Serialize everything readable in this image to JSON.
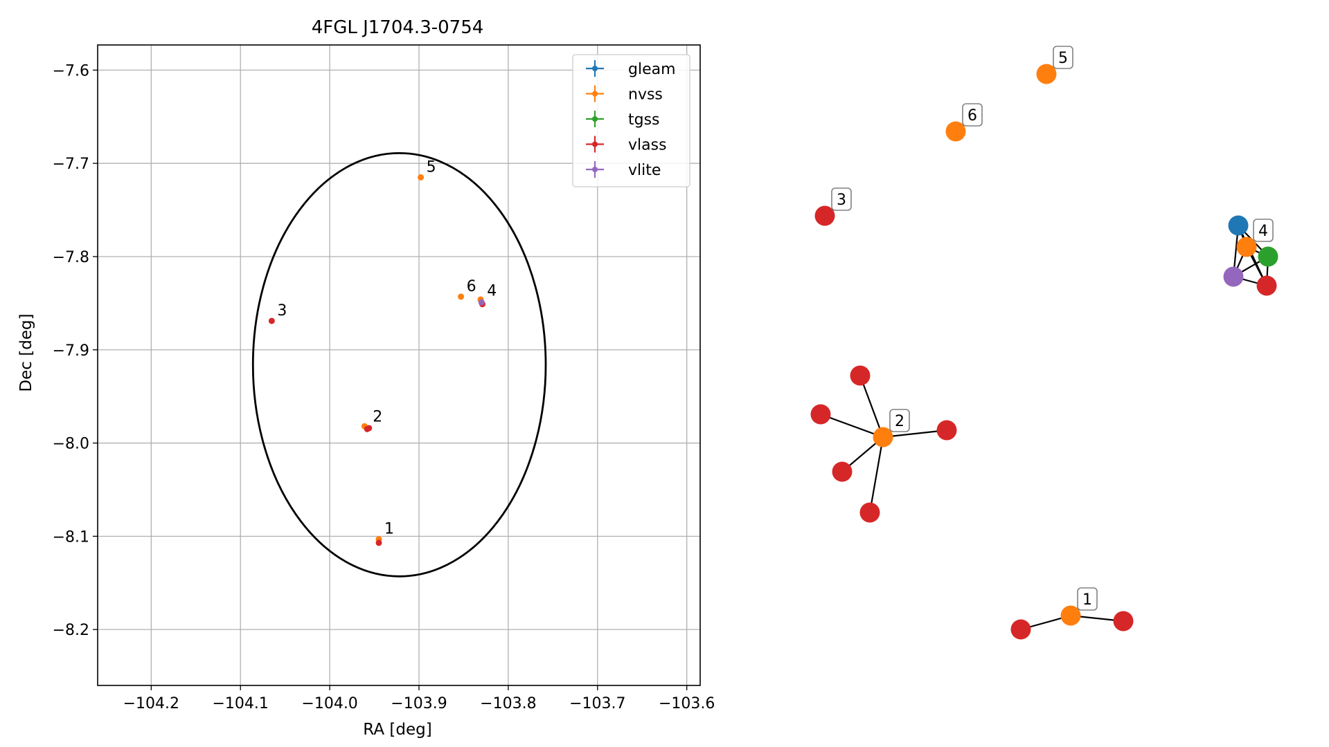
{
  "colors": {
    "gleam": "#1f77b4",
    "nvss": "#ff7f0e",
    "tgss": "#2ca02c",
    "vlass": "#d62728",
    "vlite": "#9467bd",
    "grid": "#b0b0b0",
    "axis": "#000000",
    "background": "#ffffff"
  },
  "chart_data": [
    {
      "type": "scatter",
      "title": "4FGL J1704.3-0754",
      "xlabel": "RA [deg]",
      "ylabel": "Dec [deg]",
      "xlim": [
        -104.26,
        -103.585
      ],
      "ylim": [
        -8.26,
        -7.573
      ],
      "x_ticks": [
        -104.2,
        -104.1,
        -104.0,
        -103.9,
        -103.8,
        -103.7,
        -103.6
      ],
      "x_tick_labels": [
        "−104.2",
        "−104.1",
        "−104.0",
        "−103.9",
        "−103.8",
        "−103.7",
        "−103.6"
      ],
      "y_ticks": [
        -7.6,
        -7.7,
        -7.8,
        -7.9,
        -8.0,
        -8.1,
        -8.2
      ],
      "y_tick_labels": [
        "−7.6",
        "−7.7",
        "−7.8",
        "−7.9",
        "−8.0",
        "−8.1",
        "−8.2"
      ],
      "grid": true,
      "legend_position": "top-right",
      "legend": [
        "gleam",
        "nvss",
        "tgss",
        "vlass",
        "vlite"
      ],
      "ellipse": {
        "center": [
          -103.922,
          -7.916
        ],
        "semi_axis_ra": 0.164,
        "semi_axis_dec": 0.227
      },
      "series": [
        {
          "name": "gleam",
          "points": []
        },
        {
          "name": "nvss",
          "points": [
            {
              "x": -103.945,
              "y": -8.103
            },
            {
              "x": -103.961,
              "y": -7.982
            },
            {
              "x": -103.898,
              "y": -7.715
            },
            {
              "x": -103.853,
              "y": -7.843
            },
            {
              "x": -103.831,
              "y": -7.846
            }
          ]
        },
        {
          "name": "tgss",
          "points": []
        },
        {
          "name": "vlass",
          "points": [
            {
              "x": -103.945,
              "y": -8.107
            },
            {
              "x": -103.958,
              "y": -7.985
            },
            {
              "x": -103.956,
              "y": -7.984
            },
            {
              "x": -104.065,
              "y": -7.869
            },
            {
              "x": -103.829,
              "y": -7.851
            }
          ]
        },
        {
          "name": "vlite",
          "points": [
            {
              "x": -103.83,
              "y": -7.849
            }
          ]
        }
      ],
      "annotations": [
        {
          "text": "1",
          "x": -103.945,
          "y": -8.103
        },
        {
          "text": "2",
          "x": -103.958,
          "y": -7.983
        },
        {
          "text": "3",
          "x": -104.065,
          "y": -7.869
        },
        {
          "text": "4",
          "x": -103.83,
          "y": -7.848
        },
        {
          "text": "5",
          "x": -103.898,
          "y": -7.715
        },
        {
          "text": "6",
          "x": -103.853,
          "y": -7.843
        }
      ]
    },
    {
      "type": "network",
      "groups": [
        {
          "label": "5",
          "nodes": [
            {
              "id": "a",
              "survey": "nvss",
              "label": true
            }
          ],
          "edges": []
        },
        {
          "label": "6",
          "nodes": [
            {
              "id": "a",
              "survey": "nvss",
              "label": true
            }
          ],
          "edges": []
        },
        {
          "label": "3",
          "nodes": [
            {
              "id": "a",
              "survey": "vlass",
              "label": true
            }
          ],
          "edges": []
        },
        {
          "label": "4",
          "nodes": [
            {
              "id": "g",
              "survey": "gleam"
            },
            {
              "id": "n",
              "survey": "nvss",
              "label": true
            },
            {
              "id": "t",
              "survey": "tgss"
            },
            {
              "id": "vi",
              "survey": "vlite"
            },
            {
              "id": "va",
              "survey": "vlass"
            }
          ],
          "edges": [
            [
              "g",
              "n"
            ],
            [
              "g",
              "t"
            ],
            [
              "g",
              "vi"
            ],
            [
              "g",
              "va"
            ],
            [
              "n",
              "t"
            ],
            [
              "n",
              "vi"
            ],
            [
              "n",
              "va"
            ],
            [
              "t",
              "vi"
            ],
            [
              "t",
              "va"
            ],
            [
              "vi",
              "va"
            ]
          ]
        },
        {
          "label": "2",
          "nodes": [
            {
              "id": "c",
              "survey": "nvss",
              "label": true
            },
            {
              "id": "r1",
              "survey": "vlass"
            },
            {
              "id": "r2",
              "survey": "vlass"
            },
            {
              "id": "r3",
              "survey": "vlass"
            },
            {
              "id": "r4",
              "survey": "vlass"
            },
            {
              "id": "r5",
              "survey": "vlass"
            }
          ],
          "edges": [
            [
              "c",
              "r1"
            ],
            [
              "c",
              "r2"
            ],
            [
              "c",
              "r3"
            ],
            [
              "c",
              "r4"
            ],
            [
              "c",
              "r5"
            ]
          ]
        },
        {
          "label": "1",
          "nodes": [
            {
              "id": "c",
              "survey": "nvss",
              "label": true
            },
            {
              "id": "l",
              "survey": "vlass"
            },
            {
              "id": "r",
              "survey": "vlass"
            }
          ],
          "edges": [
            [
              "c",
              "l"
            ],
            [
              "c",
              "r"
            ]
          ]
        }
      ]
    }
  ]
}
